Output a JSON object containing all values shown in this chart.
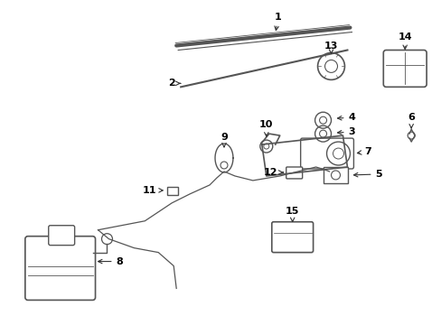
{
  "bg_color": "#ffffff",
  "line_color": "#555555",
  "text_color": "#000000",
  "figsize": [
    4.89,
    3.6
  ],
  "dpi": 100
}
